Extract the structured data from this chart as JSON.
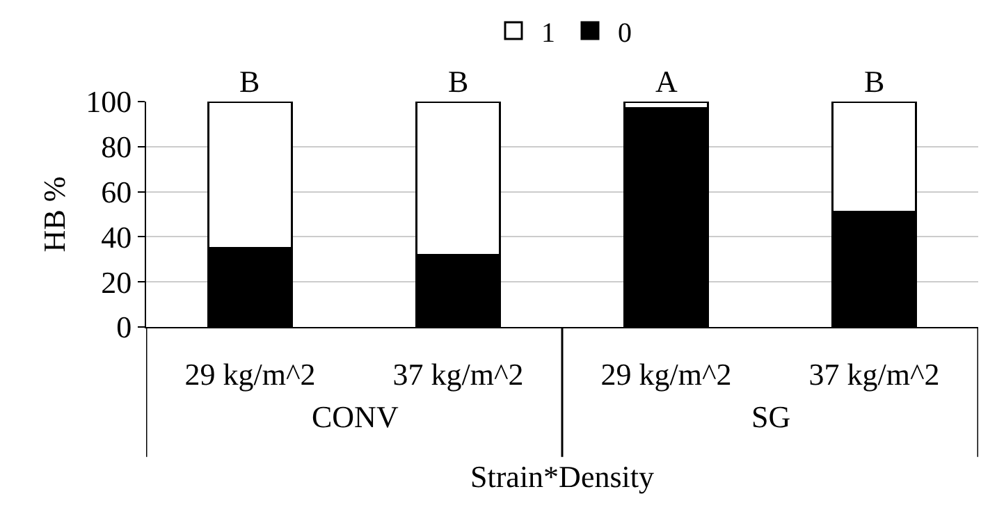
{
  "chart_data": {
    "type": "bar",
    "stacked": true,
    "xlabel": "Strain*Density",
    "ylabel": "HB %",
    "categories": [
      "29 kg/m^2",
      "37 kg/m^2",
      "29 kg/m^2",
      "37 kg/m^2"
    ],
    "series": [
      {
        "name": "0",
        "color": "#000000",
        "values": [
          35,
          32,
          97,
          51
        ]
      },
      {
        "name": "1",
        "color": "#ffffff",
        "values": [
          65,
          68,
          3,
          49
        ]
      }
    ],
    "annotations": [
      "B",
      "B",
      "A",
      "B",
      "CONV",
      "SG"
    ],
    "ylim": [
      0,
      100
    ],
    "yticks": [
      0,
      20,
      40,
      60,
      80,
      100
    ],
    "grid": "y",
    "legend": "top"
  }
}
